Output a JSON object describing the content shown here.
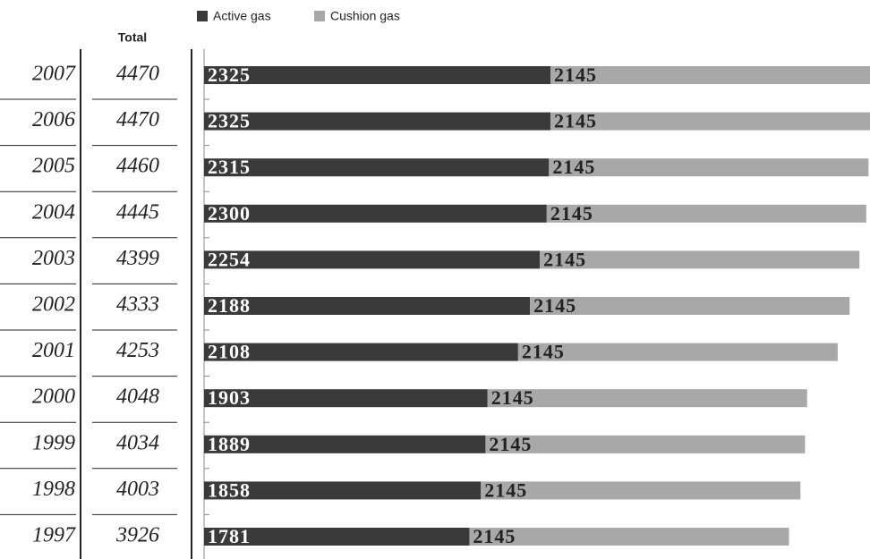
{
  "chart_data": {
    "type": "stacked-bar-h",
    "total_header": "Total",
    "categories": [
      "2007",
      "2006",
      "2005",
      "2004",
      "2003",
      "2002",
      "2001",
      "2000",
      "1999",
      "1998",
      "1997"
    ],
    "totals": [
      4470,
      4470,
      4460,
      4445,
      4399,
      4333,
      4253,
      4048,
      4034,
      4003,
      3926
    ],
    "series": [
      {
        "name": "Active gas",
        "color": "#3a3a3a",
        "values": [
          2325,
          2325,
          2315,
          2300,
          2254,
          2188,
          2108,
          1903,
          1889,
          1858,
          1781
        ]
      },
      {
        "name": "Cushion gas",
        "color": "#a8a8a8",
        "values": [
          2145,
          2145,
          2145,
          2145,
          2145,
          2145,
          2145,
          2145,
          2145,
          2145,
          2145
        ]
      }
    ]
  }
}
